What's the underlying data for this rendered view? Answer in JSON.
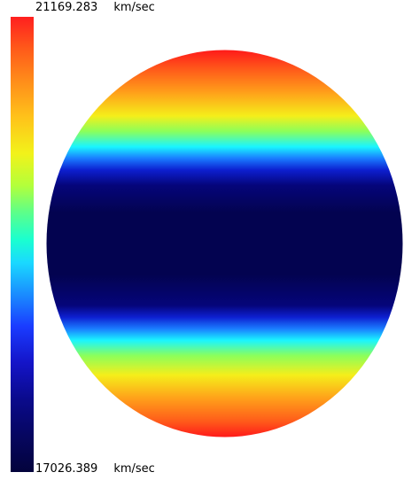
{
  "colorbar": {
    "max_value": "21169.283",
    "min_value": "17026.389",
    "unit": "km/sec",
    "colors": {
      "high": "#ff1f1f",
      "mid_high": "#f2f21a",
      "mid": "#1affd0",
      "low": "#03033c"
    }
  },
  "disc": {
    "colors": {
      "pole": "#ff1a1a",
      "warm": "#ffd21a",
      "cool": "#1af5ff",
      "equator": "#030350"
    }
  }
}
